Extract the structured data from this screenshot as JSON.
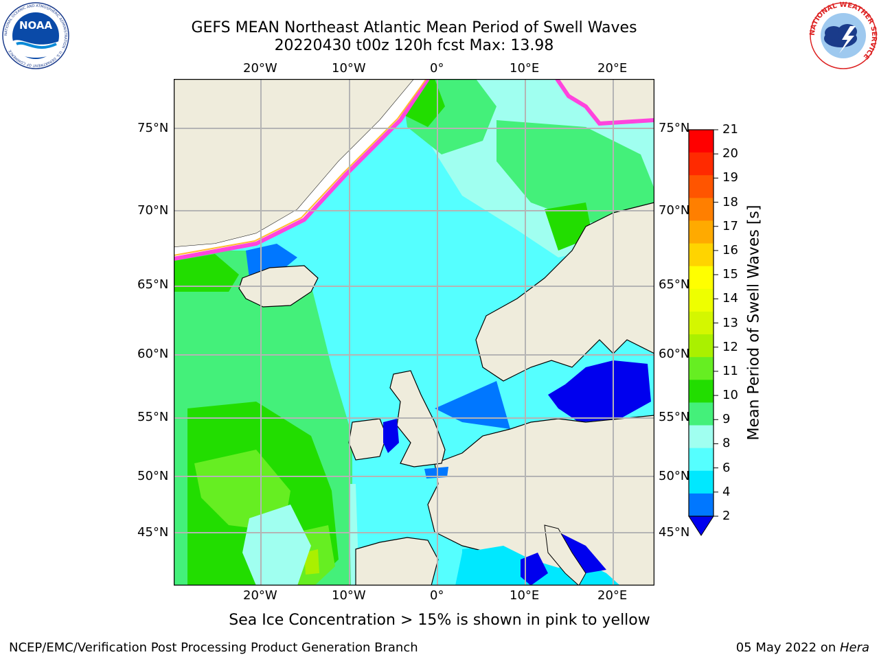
{
  "header": {
    "title_line1": "GEFS MEAN Northeast Atlantic Mean Period of Swell Waves",
    "title_line2": "20220430 t00z 120h fcst   Max: 13.98"
  },
  "logos": {
    "noaa_text": "NOAA",
    "noaa_ring": "NATIONAL OCEANIC AND ATMOSPHERIC ADMINISTRATION · U.S. DEPARTMENT OF COMMERCE",
    "nws_ring": "NATIONAL WEATHER SERVICE"
  },
  "map": {
    "lon_labels": [
      "20°W",
      "10°W",
      "0°",
      "10°E",
      "20°E"
    ],
    "lat_labels": [
      "75°N",
      "70°N",
      "65°N",
      "60°N",
      "55°N",
      "50°N",
      "45°N"
    ],
    "colors": {
      "land": "#efecdc",
      "gridline": "#b4b4b4",
      "ice": "#ff44dd"
    }
  },
  "colorbar": {
    "label": "Mean Period of Swell Waves [s]",
    "ticks": [
      "21",
      "20",
      "19",
      "18",
      "17",
      "16",
      "15",
      "14",
      "13",
      "12",
      "11",
      "10",
      "9",
      "8",
      "6",
      "4",
      "2"
    ],
    "colors": [
      "#ff0000",
      "#ff2a00",
      "#ff5500",
      "#ff7f00",
      "#ffaa00",
      "#ffd400",
      "#ffff00",
      "#eeff00",
      "#d4f700",
      "#aaf000",
      "#66ee22",
      "#22dd00",
      "#44f07a",
      "#a0fff0",
      "#55ffff",
      "#00e8ff",
      "#0077ff"
    ],
    "extend_color": "#0000ee"
  },
  "note": "Sea Ice Concentration > 15% is shown in pink to yellow",
  "footer": {
    "left": "NCEP/EMC/Verification Post Processing Product Generation Branch",
    "date": "05 May 2022 on ",
    "host": "Hera"
  }
}
